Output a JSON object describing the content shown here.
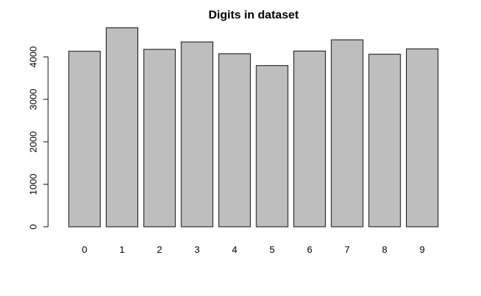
{
  "chart_data": {
    "type": "bar",
    "title": "Digits in dataset",
    "xlabel": "",
    "ylabel": "",
    "categories": [
      "0",
      "1",
      "2",
      "3",
      "4",
      "5",
      "6",
      "7",
      "8",
      "9"
    ],
    "values": [
      4132,
      4684,
      4177,
      4351,
      4072,
      3795,
      4137,
      4401,
      4063,
      4188
    ],
    "ylim": [
      0,
      4700
    ],
    "yticks": [
      "0",
      "1000",
      "2000",
      "3000",
      "4000"
    ],
    "grid": false,
    "legend": "none",
    "bar_color": "#bebebe",
    "edge_color": "#000000"
  }
}
